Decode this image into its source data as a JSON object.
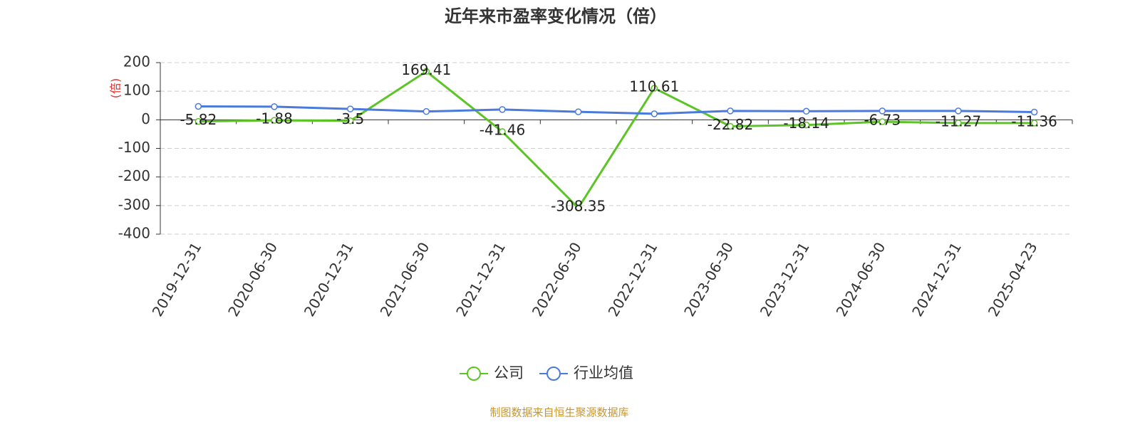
{
  "chart_data": {
    "type": "line",
    "title": "近年来市盈率变化情况（倍）",
    "y_label": "(倍)",
    "categories": [
      "2019-12-31",
      "2020-06-30",
      "2020-12-31",
      "2021-06-30",
      "2021-12-31",
      "2022-06-30",
      "2022-12-31",
      "2023-06-30",
      "2023-12-31",
      "2024-06-30",
      "2024-12-31",
      "2025-04-23"
    ],
    "series": [
      {
        "name": "公司",
        "color": "#5cc424",
        "values": [
          -5.82,
          -1.88,
          -3.5,
          169.41,
          -41.46,
          -308.35,
          110.61,
          -22.82,
          -18.14,
          -6.73,
          -11.27,
          -11.36
        ],
        "show_labels": true
      },
      {
        "name": "行业均值",
        "color": "#4a7bdc",
        "values": [
          47,
          46,
          38,
          29,
          36,
          28,
          21,
          31,
          30,
          31,
          31,
          27
        ],
        "show_labels": false
      }
    ],
    "ylim": [
      -400,
      200
    ],
    "yticks": [
      -400,
      -300,
      -200,
      -100,
      0,
      100,
      200
    ],
    "grid": true,
    "source": "制图数据来自恒生聚源数据库"
  }
}
